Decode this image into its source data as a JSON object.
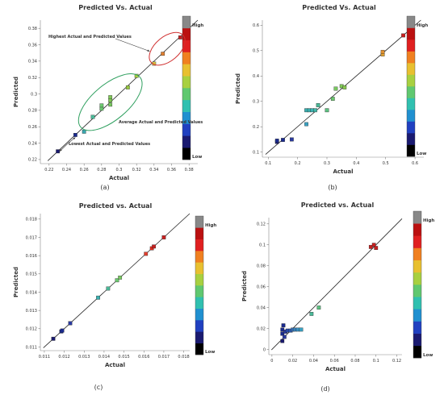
{
  "chart_data": [
    {
      "id": "a",
      "type": "scatter",
      "panel_label": "(a)",
      "title": "Predicted Vs. Actual",
      "xlabel": "Actual",
      "ylabel": "Predicted",
      "xlim": [
        0.21,
        0.39
      ],
      "ylim": [
        0.215,
        0.39
      ],
      "xticks": [
        "0.22",
        "0.24",
        "0.26",
        "0.28",
        "0.3",
        "0.32",
        "0.34",
        "0.36",
        "0.38"
      ],
      "xtick_values": [
        0.22,
        0.24,
        0.26,
        0.28,
        0.3,
        0.32,
        0.34,
        0.36,
        0.38
      ],
      "yticks": [
        "0.22",
        "0.24",
        "0.26",
        "0.28",
        "0.3",
        "0.32",
        "0.34",
        "0.36",
        "0.38"
      ],
      "ytick_values": [
        0.22,
        0.24,
        0.26,
        0.28,
        0.3,
        0.32,
        0.34,
        0.36,
        0.38
      ],
      "legend": {
        "high": "High",
        "low": "Low"
      },
      "points": [
        {
          "x": 0.23,
          "y": 0.23,
          "color": "#1a1a6e"
        },
        {
          "x": 0.25,
          "y": 0.25,
          "color": "#1a2a8e"
        },
        {
          "x": 0.26,
          "y": 0.254,
          "color": "#3aa8b0"
        },
        {
          "x": 0.27,
          "y": 0.272,
          "color": "#4ab898"
        },
        {
          "x": 0.28,
          "y": 0.282,
          "color": "#6cc870"
        },
        {
          "x": 0.28,
          "y": 0.286,
          "color": "#6cc870"
        },
        {
          "x": 0.29,
          "y": 0.287,
          "color": "#78c860"
        },
        {
          "x": 0.29,
          "y": 0.292,
          "color": "#80c858"
        },
        {
          "x": 0.29,
          "y": 0.296,
          "color": "#80c858"
        },
        {
          "x": 0.31,
          "y": 0.308,
          "color": "#98c840"
        },
        {
          "x": 0.32,
          "y": 0.322,
          "color": "#a8d040"
        },
        {
          "x": 0.34,
          "y": 0.337,
          "color": "#d8c040"
        },
        {
          "x": 0.35,
          "y": 0.349,
          "color": "#e08030"
        },
        {
          "x": 0.37,
          "y": 0.369,
          "color": "#c82020"
        }
      ],
      "annotations": [
        "Highest Actual and Predicted Values",
        "Average Actual and Predicted Values",
        "Lowest Actual and Predicted Values"
      ]
    },
    {
      "id": "b",
      "type": "scatter",
      "panel_label": "(b)",
      "title": "Predicted Vs. Actual",
      "xlabel": "Actual",
      "ylabel": "Predicted",
      "xlim": [
        0.08,
        0.63
      ],
      "ylim": [
        0.08,
        0.62
      ],
      "xticks": [
        "0.1",
        "0.2",
        "0.3",
        "0.4",
        "0.5",
        "0.6"
      ],
      "xtick_values": [
        0.1,
        0.2,
        0.3,
        0.4,
        0.5,
        0.6
      ],
      "yticks": [
        "0.1",
        "0.2",
        "0.3",
        "0.4",
        "0.5",
        "0.6"
      ],
      "ytick_values": [
        0.1,
        0.2,
        0.3,
        0.4,
        0.5,
        0.6
      ],
      "legend": {
        "high": "High",
        "low": "Low"
      },
      "points": [
        {
          "x": 0.13,
          "y": 0.14,
          "color": "#1a1a6e"
        },
        {
          "x": 0.13,
          "y": 0.145,
          "color": "#1a2a8e"
        },
        {
          "x": 0.15,
          "y": 0.148,
          "color": "#1a2a8e"
        },
        {
          "x": 0.18,
          "y": 0.15,
          "color": "#2a3a9e"
        },
        {
          "x": 0.23,
          "y": 0.21,
          "color": "#3aa0c0"
        },
        {
          "x": 0.23,
          "y": 0.265,
          "color": "#3ab0b0"
        },
        {
          "x": 0.24,
          "y": 0.265,
          "color": "#3ab0b0"
        },
        {
          "x": 0.25,
          "y": 0.265,
          "color": "#3ab0b0"
        },
        {
          "x": 0.26,
          "y": 0.265,
          "color": "#40b8a8"
        },
        {
          "x": 0.27,
          "y": 0.285,
          "color": "#4ab898"
        },
        {
          "x": 0.3,
          "y": 0.265,
          "color": "#5cc080"
        },
        {
          "x": 0.32,
          "y": 0.31,
          "color": "#6cc870"
        },
        {
          "x": 0.33,
          "y": 0.35,
          "color": "#78c860"
        },
        {
          "x": 0.35,
          "y": 0.36,
          "color": "#80c858"
        },
        {
          "x": 0.36,
          "y": 0.355,
          "color": "#88c850"
        },
        {
          "x": 0.49,
          "y": 0.485,
          "color": "#e0a030"
        },
        {
          "x": 0.49,
          "y": 0.495,
          "color": "#e09030"
        },
        {
          "x": 0.56,
          "y": 0.56,
          "color": "#c82020"
        }
      ]
    },
    {
      "id": "c",
      "type": "scatter",
      "panel_label": "(c)",
      "title": "Predicted vs. Actual",
      "xlabel": "Actual",
      "ylabel": "Predicted",
      "xlim": [
        0.0108,
        0.0183
      ],
      "ylim": [
        0.0108,
        0.0183
      ],
      "xticks": [
        "0.011",
        "0.012",
        "0.013",
        "0.014",
        "0.015",
        "0.016",
        "0.017",
        "0.018"
      ],
      "xtick_values": [
        0.011,
        0.012,
        0.013,
        0.014,
        0.015,
        0.016,
        0.017,
        0.018
      ],
      "yticks": [
        "0.011",
        "0.012",
        "0.013",
        "0.014",
        "0.015",
        "0.016",
        "0.017",
        "0.018"
      ],
      "ytick_values": [
        0.011,
        0.012,
        0.013,
        0.014,
        0.015,
        0.016,
        0.017,
        0.018
      ],
      "legend": {
        "high": "High",
        "low": "Low"
      },
      "points": [
        {
          "x": 0.01145,
          "y": 0.01145,
          "color": "#1a1a6e"
        },
        {
          "x": 0.01185,
          "y": 0.01185,
          "color": "#1a2a8e"
        },
        {
          "x": 0.0119,
          "y": 0.0119,
          "color": "#1a2a8e"
        },
        {
          "x": 0.0123,
          "y": 0.0123,
          "color": "#2a3a9e"
        },
        {
          "x": 0.0137,
          "y": 0.0137,
          "color": "#3ab0b0"
        },
        {
          "x": 0.0142,
          "y": 0.0142,
          "color": "#4ab898"
        },
        {
          "x": 0.01465,
          "y": 0.01465,
          "color": "#6cc870"
        },
        {
          "x": 0.0148,
          "y": 0.0148,
          "color": "#78c860"
        },
        {
          "x": 0.0161,
          "y": 0.0161,
          "color": "#e04030"
        },
        {
          "x": 0.0164,
          "y": 0.0164,
          "color": "#e03020"
        },
        {
          "x": 0.0165,
          "y": 0.0165,
          "color": "#c82020"
        },
        {
          "x": 0.017,
          "y": 0.017,
          "color": "#c82020"
        }
      ]
    },
    {
      "id": "d",
      "type": "scatter",
      "panel_label": "(d)",
      "title": "Predicted vs. Actual",
      "xlabel": "Actual",
      "ylabel": "Predicted",
      "xlim": [
        -0.003,
        0.125
      ],
      "ylim": [
        -0.005,
        0.126
      ],
      "xticks": [
        "0",
        "0.02",
        "0.04",
        "0.06",
        "0.08",
        "0.1",
        "0.12"
      ],
      "xtick_values": [
        0,
        0.02,
        0.04,
        0.06,
        0.08,
        0.1,
        0.12
      ],
      "yticks": [
        "0",
        "0.02",
        "0.04",
        "0.06",
        "0.08",
        "0.1",
        "0.12"
      ],
      "ytick_values": [
        0,
        0.02,
        0.04,
        0.06,
        0.08,
        0.1,
        0.12
      ],
      "legend": {
        "high": "High",
        "low": "Low"
      },
      "points": [
        {
          "x": 0.01,
          "y": 0.008,
          "color": "#1a1a6e"
        },
        {
          "x": 0.01,
          "y": 0.015,
          "color": "#1a2a8e"
        },
        {
          "x": 0.01,
          "y": 0.019,
          "color": "#1a2a8e"
        },
        {
          "x": 0.011,
          "y": 0.023,
          "color": "#1a2a8e"
        },
        {
          "x": 0.012,
          "y": 0.012,
          "color": "#2a3a9e"
        },
        {
          "x": 0.013,
          "y": 0.017,
          "color": "#2a3a9e"
        },
        {
          "x": 0.015,
          "y": 0.018,
          "color": "#2a4aa8"
        },
        {
          "x": 0.018,
          "y": 0.018,
          "color": "#2a5ab0"
        },
        {
          "x": 0.02,
          "y": 0.019,
          "color": "#3a70b8"
        },
        {
          "x": 0.022,
          "y": 0.019,
          "color": "#3a80b8"
        },
        {
          "x": 0.025,
          "y": 0.019,
          "color": "#3a90c0"
        },
        {
          "x": 0.028,
          "y": 0.019,
          "color": "#3aa0c0"
        },
        {
          "x": 0.038,
          "y": 0.034,
          "color": "#4ab898"
        },
        {
          "x": 0.045,
          "y": 0.04,
          "color": "#5cc080"
        },
        {
          "x": 0.095,
          "y": 0.098,
          "color": "#c82020"
        },
        {
          "x": 0.098,
          "y": 0.1,
          "color": "#c82020"
        },
        {
          "x": 0.1,
          "y": 0.097,
          "color": "#c82020"
        }
      ]
    }
  ]
}
